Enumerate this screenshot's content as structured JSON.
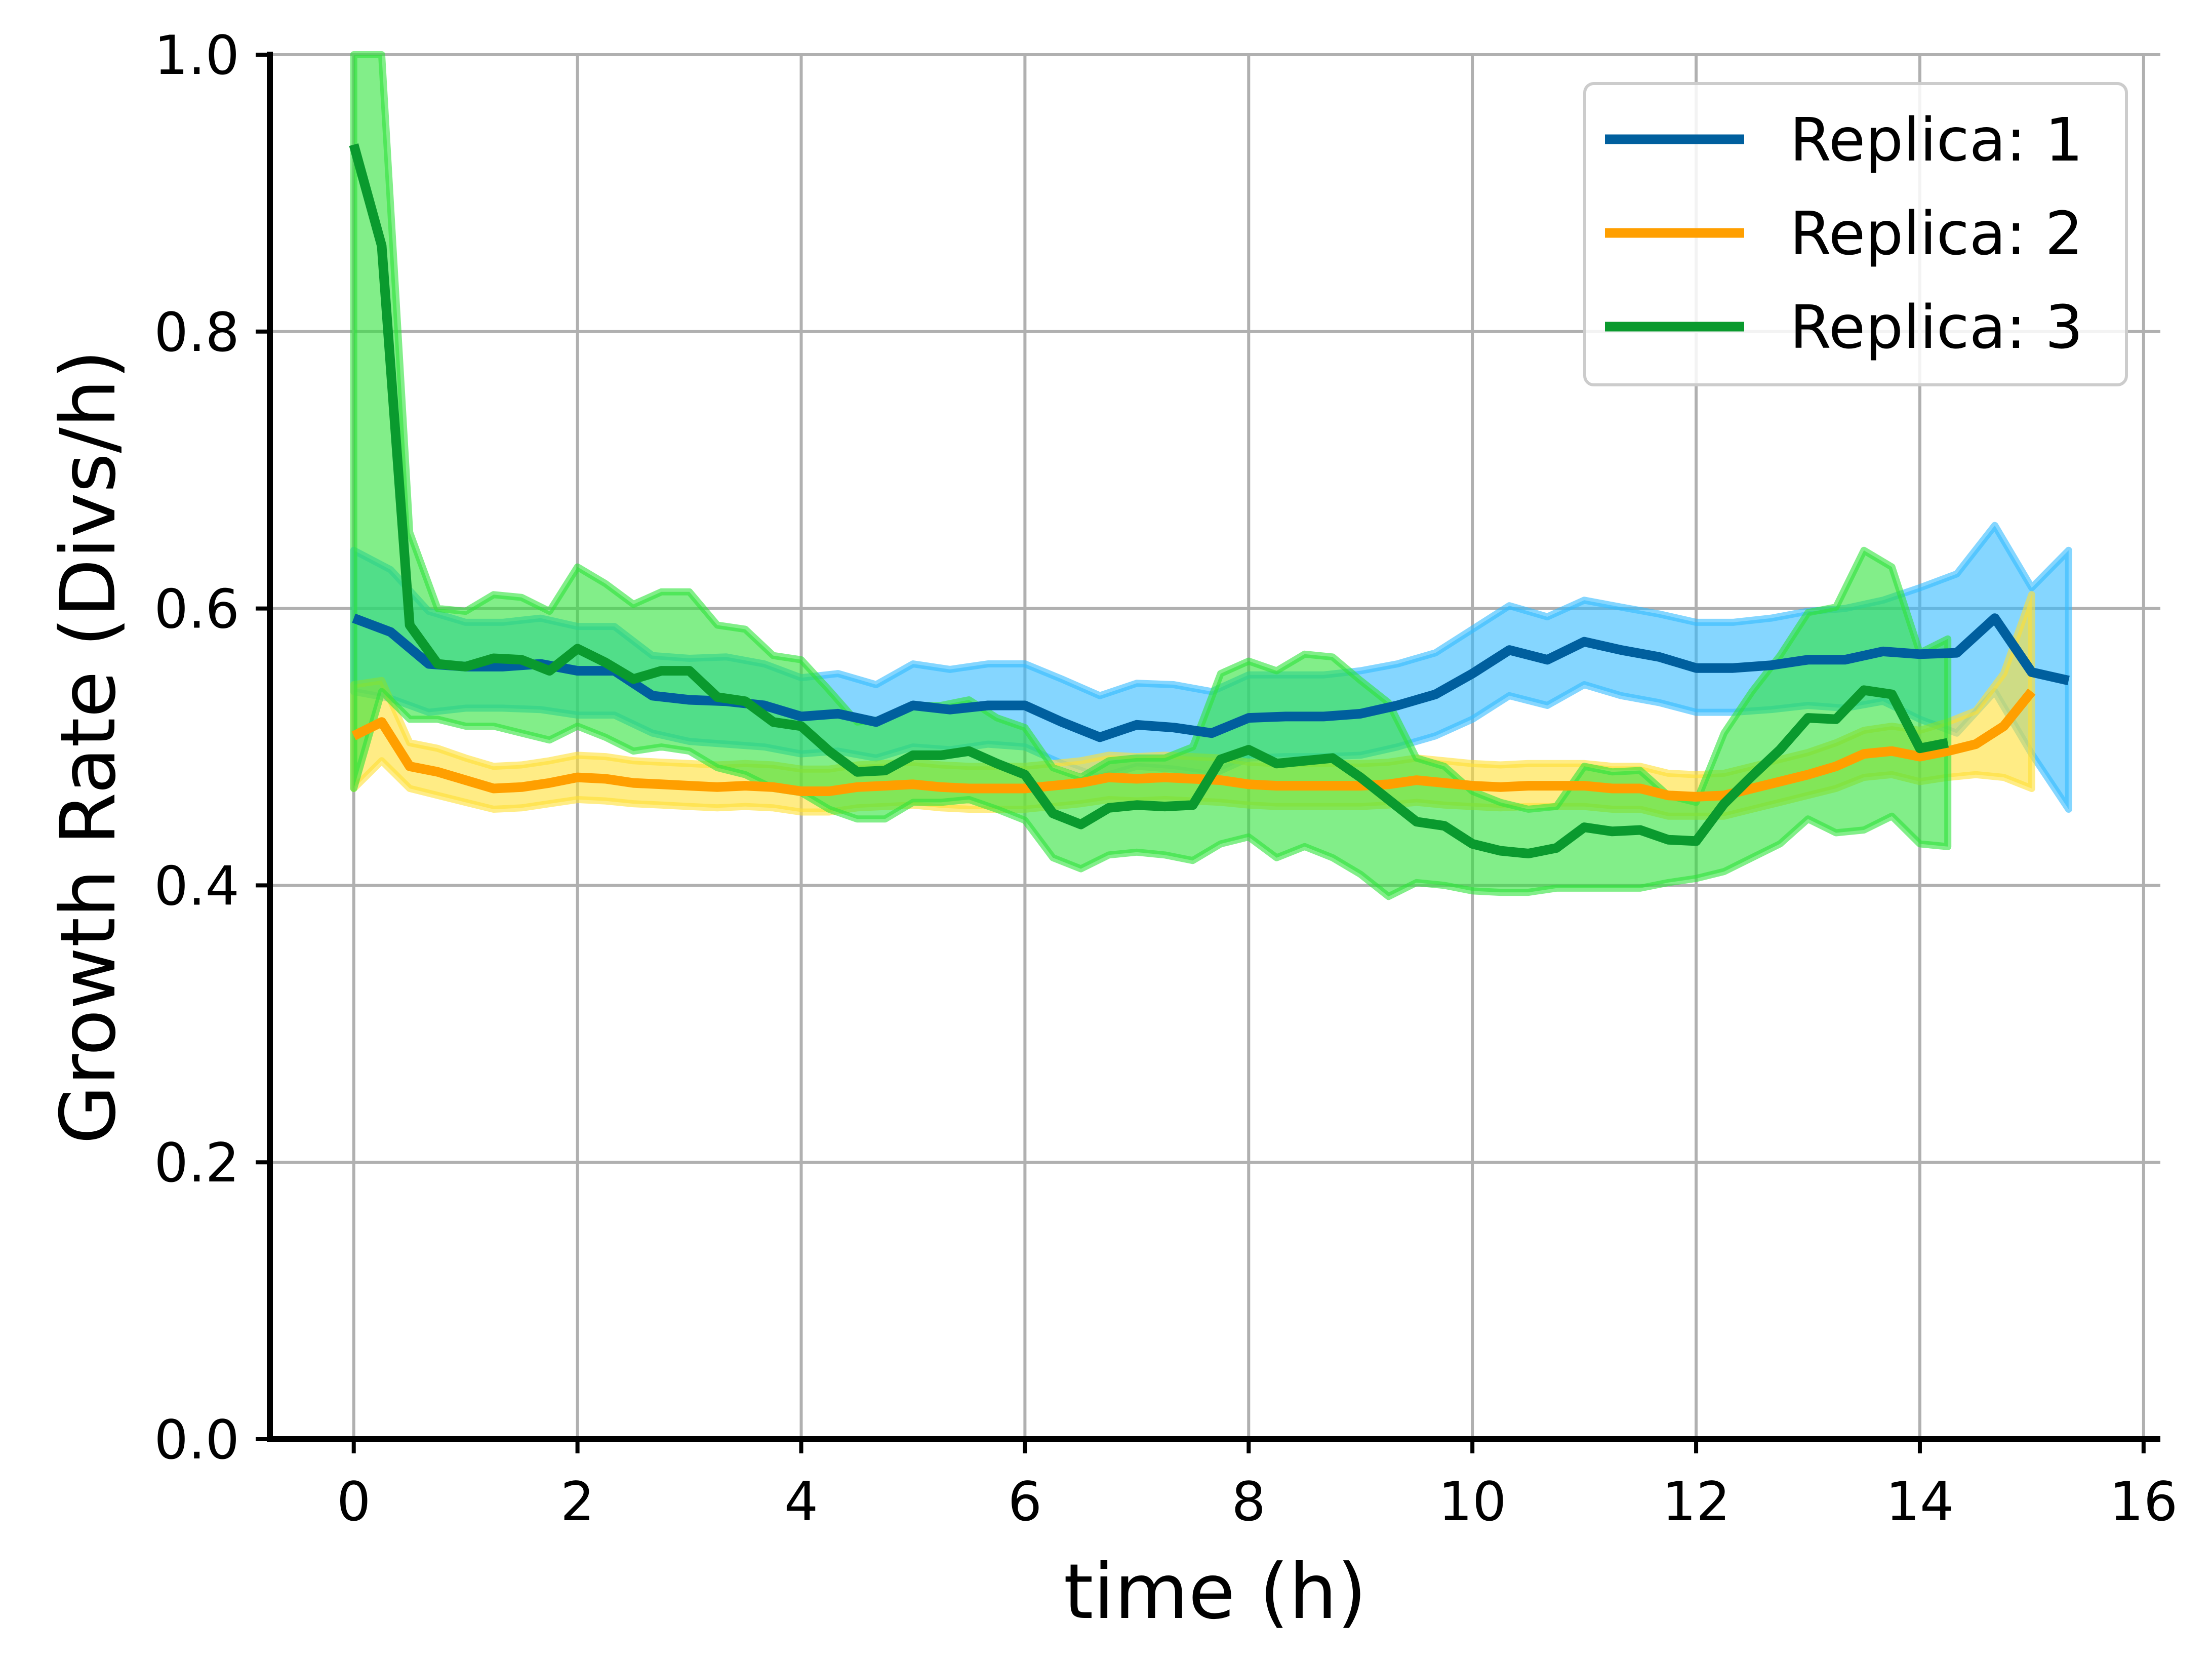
{
  "chart_data": {
    "type": "line",
    "xlabel": "time (h)",
    "ylabel": "Growth Rate (Divs/h)",
    "xlim": [
      -0.75,
      16.15
    ],
    "ylim": [
      0,
      1.0
    ],
    "xticks": [
      0,
      2,
      4,
      6,
      8,
      10,
      12,
      14,
      16
    ],
    "yticks": [
      0.0,
      0.2,
      0.4,
      0.6,
      0.8,
      1.0
    ],
    "xtick_labels": [
      "0",
      "2",
      "4",
      "6",
      "8",
      "10",
      "12",
      "14",
      "16"
    ],
    "ytick_labels": [
      "0.0",
      "0.2",
      "0.4",
      "0.6",
      "0.8",
      "1.0"
    ],
    "grid": true,
    "legend_position": "top-right",
    "series": [
      {
        "name": "Replica: 1",
        "color": "#005f9e",
        "band_color": "#33bbff",
        "x": [
          0,
          0.33,
          0.67,
          1,
          1.33,
          1.67,
          2,
          2.33,
          2.67,
          3,
          3.33,
          3.67,
          4,
          4.33,
          4.67,
          5,
          5.33,
          5.67,
          6,
          6.33,
          6.67,
          7,
          7.33,
          7.67,
          8,
          8.33,
          8.67,
          9,
          9.33,
          9.67,
          10,
          10.33,
          10.67,
          11,
          11.33,
          11.67,
          12,
          12.33,
          12.67,
          13,
          13.33,
          13.67,
          14,
          14.33,
          14.67,
          15,
          15.33
        ],
        "y": [
          0.593,
          0.583,
          0.56,
          0.558,
          0.558,
          0.56,
          0.555,
          0.555,
          0.537,
          0.534,
          0.533,
          0.53,
          0.522,
          0.524,
          0.518,
          0.53,
          0.527,
          0.53,
          0.53,
          0.518,
          0.507,
          0.516,
          0.514,
          0.51,
          0.521,
          0.522,
          0.522,
          0.524,
          0.53,
          0.538,
          0.553,
          0.57,
          0.563,
          0.576,
          0.57,
          0.565,
          0.557,
          0.557,
          0.559,
          0.563,
          0.563,
          0.569,
          0.567,
          0.568,
          0.593,
          0.554,
          0.548
        ],
        "y_lower": [
          0.54,
          0.535,
          0.525,
          0.528,
          0.528,
          0.527,
          0.523,
          0.523,
          0.51,
          0.504,
          0.502,
          0.5,
          0.495,
          0.497,
          0.492,
          0.5,
          0.498,
          0.502,
          0.5,
          0.488,
          0.478,
          0.486,
          0.484,
          0.48,
          0.492,
          0.493,
          0.493,
          0.494,
          0.5,
          0.508,
          0.52,
          0.537,
          0.53,
          0.545,
          0.537,
          0.532,
          0.525,
          0.525,
          0.527,
          0.53,
          0.528,
          0.533,
          0.52,
          0.51,
          0.54,
          0.495,
          0.455
        ],
        "y_upper": [
          0.642,
          0.628,
          0.598,
          0.59,
          0.59,
          0.593,
          0.587,
          0.587,
          0.566,
          0.564,
          0.565,
          0.56,
          0.55,
          0.553,
          0.545,
          0.56,
          0.556,
          0.56,
          0.56,
          0.549,
          0.537,
          0.546,
          0.545,
          0.54,
          0.552,
          0.552,
          0.552,
          0.555,
          0.56,
          0.568,
          0.585,
          0.602,
          0.594,
          0.606,
          0.601,
          0.596,
          0.59,
          0.59,
          0.593,
          0.598,
          0.6,
          0.606,
          0.615,
          0.625,
          0.66,
          0.615,
          0.642
        ]
      },
      {
        "name": "Replica: 2",
        "color": "#ff9f00",
        "band_color": "#ffe033",
        "x": [
          0,
          0.25,
          0.5,
          0.75,
          1,
          1.25,
          1.5,
          1.75,
          2,
          2.25,
          2.5,
          2.75,
          3,
          3.25,
          3.5,
          3.75,
          4,
          4.25,
          4.5,
          4.75,
          5,
          5.25,
          5.5,
          5.75,
          6,
          6.25,
          6.5,
          6.75,
          7,
          7.25,
          7.5,
          7.75,
          8,
          8.25,
          8.5,
          8.75,
          9,
          9.25,
          9.5,
          9.75,
          10,
          10.25,
          10.5,
          10.75,
          11,
          11.25,
          11.5,
          11.75,
          12,
          12.25,
          12.5,
          12.75,
          13,
          13.25,
          13.5,
          13.75,
          14,
          14.25,
          14.5,
          14.75,
          15
        ],
        "y": [
          0.508,
          0.518,
          0.486,
          0.482,
          0.476,
          0.47,
          0.471,
          0.474,
          0.478,
          0.477,
          0.474,
          0.473,
          0.472,
          0.471,
          0.472,
          0.471,
          0.468,
          0.468,
          0.471,
          0.472,
          0.473,
          0.471,
          0.47,
          0.47,
          0.47,
          0.472,
          0.474,
          0.478,
          0.477,
          0.478,
          0.477,
          0.476,
          0.473,
          0.472,
          0.472,
          0.472,
          0.472,
          0.473,
          0.476,
          0.474,
          0.472,
          0.471,
          0.472,
          0.472,
          0.472,
          0.47,
          0.47,
          0.465,
          0.464,
          0.465,
          0.47,
          0.475,
          0.48,
          0.486,
          0.495,
          0.497,
          0.493,
          0.497,
          0.502,
          0.515,
          0.54
        ],
        "y_lower": [
          0.47,
          0.49,
          0.47,
          0.465,
          0.46,
          0.455,
          0.456,
          0.459,
          0.462,
          0.461,
          0.459,
          0.458,
          0.457,
          0.456,
          0.457,
          0.456,
          0.453,
          0.453,
          0.456,
          0.457,
          0.458,
          0.456,
          0.455,
          0.455,
          0.455,
          0.457,
          0.459,
          0.462,
          0.461,
          0.462,
          0.461,
          0.46,
          0.458,
          0.457,
          0.457,
          0.457,
          0.457,
          0.458,
          0.46,
          0.458,
          0.457,
          0.456,
          0.457,
          0.457,
          0.457,
          0.455,
          0.455,
          0.45,
          0.45,
          0.45,
          0.455,
          0.46,
          0.465,
          0.47,
          0.478,
          0.48,
          0.475,
          0.478,
          0.48,
          0.478,
          0.47
        ],
        "y_upper": [
          0.545,
          0.548,
          0.503,
          0.499,
          0.492,
          0.486,
          0.487,
          0.49,
          0.494,
          0.493,
          0.49,
          0.489,
          0.488,
          0.487,
          0.488,
          0.487,
          0.484,
          0.484,
          0.487,
          0.488,
          0.489,
          0.487,
          0.486,
          0.486,
          0.486,
          0.488,
          0.49,
          0.494,
          0.493,
          0.494,
          0.493,
          0.492,
          0.489,
          0.488,
          0.488,
          0.488,
          0.488,
          0.489,
          0.492,
          0.49,
          0.488,
          0.487,
          0.488,
          0.488,
          0.488,
          0.486,
          0.486,
          0.481,
          0.48,
          0.481,
          0.486,
          0.491,
          0.496,
          0.503,
          0.512,
          0.515,
          0.512,
          0.518,
          0.526,
          0.553,
          0.61
        ]
      },
      {
        "name": "Replica: 3",
        "color": "#0a9a2e",
        "band_color": "#2ee33b",
        "x": [
          0,
          0.25,
          0.5,
          0.75,
          1,
          1.25,
          1.5,
          1.75,
          2,
          2.25,
          2.5,
          2.75,
          3,
          3.25,
          3.5,
          3.75,
          4,
          4.25,
          4.5,
          4.75,
          5,
          5.25,
          5.5,
          5.75,
          6,
          6.25,
          6.5,
          6.75,
          7,
          7.25,
          7.5,
          7.75,
          8,
          8.25,
          8.5,
          8.75,
          9,
          9.25,
          9.5,
          9.75,
          10,
          10.25,
          10.5,
          10.75,
          11,
          11.25,
          11.5,
          11.75,
          12,
          12.25,
          12.5,
          12.75,
          13,
          13.25,
          13.5,
          13.75,
          14,
          14.25
        ],
        "y": [
          0.935,
          0.862,
          0.588,
          0.56,
          0.558,
          0.564,
          0.563,
          0.555,
          0.571,
          0.561,
          0.549,
          0.555,
          0.555,
          0.536,
          0.533,
          0.518,
          0.515,
          0.497,
          0.482,
          0.483,
          0.494,
          0.494,
          0.497,
          0.488,
          0.48,
          0.452,
          0.444,
          0.456,
          0.458,
          0.457,
          0.458,
          0.491,
          0.498,
          0.488,
          0.49,
          0.492,
          0.478,
          0.462,
          0.446,
          0.443,
          0.43,
          0.425,
          0.423,
          0.427,
          0.442,
          0.439,
          0.44,
          0.433,
          0.432,
          0.459,
          0.479,
          0.498,
          0.521,
          0.52,
          0.541,
          0.538,
          0.499,
          0.503
        ],
        "y_lower": [
          0.47,
          0.54,
          0.52,
          0.52,
          0.515,
          0.515,
          0.51,
          0.505,
          0.515,
          0.507,
          0.497,
          0.5,
          0.497,
          0.485,
          0.48,
          0.47,
          0.467,
          0.455,
          0.448,
          0.448,
          0.46,
          0.46,
          0.462,
          0.455,
          0.447,
          0.42,
          0.412,
          0.422,
          0.424,
          0.422,
          0.418,
          0.43,
          0.435,
          0.42,
          0.428,
          0.42,
          0.408,
          0.392,
          0.402,
          0.4,
          0.396,
          0.395,
          0.395,
          0.398,
          0.398,
          0.398,
          0.398,
          0.402,
          0.405,
          0.41,
          0.42,
          0.43,
          0.448,
          0.438,
          0.44,
          0.45,
          0.43,
          0.428
        ],
        "y_upper": [
          1.0,
          1.0,
          0.655,
          0.6,
          0.598,
          0.61,
          0.608,
          0.598,
          0.63,
          0.618,
          0.603,
          0.612,
          0.612,
          0.588,
          0.585,
          0.566,
          0.563,
          0.541,
          0.518,
          0.52,
          0.53,
          0.53,
          0.534,
          0.521,
          0.514,
          0.485,
          0.478,
          0.49,
          0.492,
          0.492,
          0.5,
          0.553,
          0.562,
          0.555,
          0.567,
          0.565,
          0.548,
          0.532,
          0.492,
          0.486,
          0.468,
          0.46,
          0.455,
          0.457,
          0.486,
          0.482,
          0.483,
          0.465,
          0.46,
          0.51,
          0.54,
          0.566,
          0.597,
          0.601,
          0.642,
          0.63,
          0.568,
          0.578
        ]
      }
    ]
  }
}
